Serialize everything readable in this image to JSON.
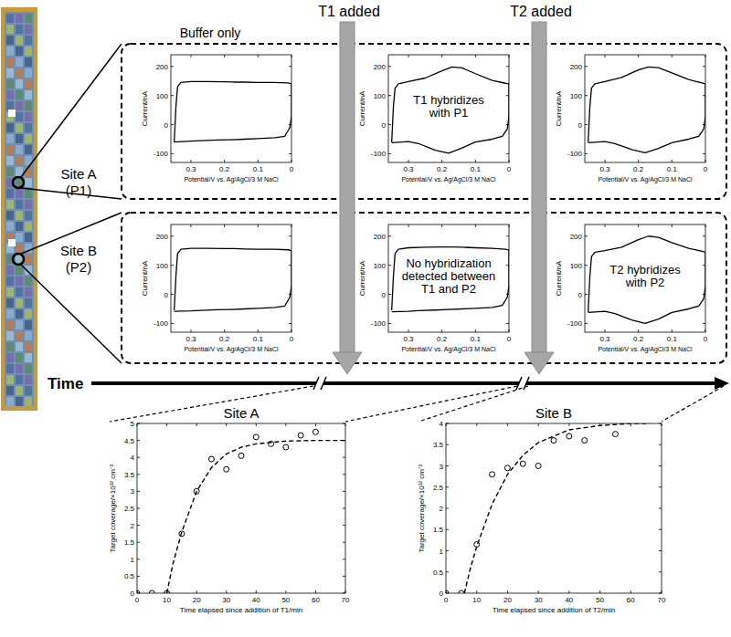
{
  "labels": {
    "buffer_only": "Buffer only",
    "arrows": [
      "T1 added",
      "T2 added"
    ],
    "sites": [
      {
        "name": "Site A",
        "probe": "(P1)"
      },
      {
        "name": "Site B",
        "probe": "(P2)"
      }
    ],
    "time_axis": "Time"
  },
  "chart_data": [
    {
      "type": "line",
      "x_label": "Potential/V vs. Ag/AgCl/3 M NaCl",
      "y_label": "Current/nA",
      "xlim": [
        0.36,
        0
      ],
      "ylim": [
        -130,
        240
      ],
      "xticks": [
        0.3,
        0.2,
        0.1,
        0
      ],
      "yticks": [
        -100,
        0,
        100,
        200
      ],
      "series": [
        {
          "color": "#000000",
          "x": [
            0.35,
            0.345,
            0.34,
            0.33,
            0.3,
            0.25,
            0.2,
            0.17,
            0.14,
            0.1,
            0.05,
            0.01,
            0,
            0,
            0.005,
            0.02,
            0.05,
            0.1,
            0.14,
            0.18,
            0.22,
            0.27,
            0.3,
            0.35
          ],
          "values": [
            -60,
            60,
            130,
            145,
            148,
            148,
            147,
            146,
            146,
            145,
            145,
            143,
            140,
            30,
            -10,
            -40,
            -45,
            -48,
            -50,
            -52,
            -53,
            -55,
            -57,
            -60
          ]
        }
      ]
    },
    {
      "type": "line",
      "x_label": "Potential/V vs. Ag/AgCl/3 M NaCl",
      "y_label": "Current/nA",
      "xlim": [
        0.36,
        0
      ],
      "ylim": [
        -130,
        240
      ],
      "xticks": [
        0.3,
        0.2,
        0.1,
        0
      ],
      "yticks": [
        -100,
        0,
        100,
        200
      ],
      "annotation": [
        "T1 hybridizes",
        "with P1"
      ],
      "series": [
        {
          "color": "#000000",
          "x": [
            0.35,
            0.345,
            0.34,
            0.33,
            0.3,
            0.25,
            0.2,
            0.17,
            0.14,
            0.1,
            0.05,
            0.01,
            0,
            0,
            0.005,
            0.02,
            0.05,
            0.1,
            0.14,
            0.18,
            0.22,
            0.27,
            0.3,
            0.35
          ],
          "values": [
            -60,
            60,
            125,
            140,
            148,
            160,
            185,
            198,
            195,
            175,
            152,
            142,
            140,
            30,
            -15,
            -40,
            -50,
            -60,
            -80,
            -98,
            -88,
            -65,
            -58,
            -62
          ]
        }
      ]
    },
    {
      "type": "line",
      "x_label": "Potential/V vs. Ag/AgCl/3 M NaCl",
      "y_label": "Current/nA",
      "xlim": [
        0.36,
        0
      ],
      "ylim": [
        -130,
        240
      ],
      "xticks": [
        0.3,
        0.2,
        0.1,
        0
      ],
      "yticks": [
        -100,
        0,
        100,
        200
      ],
      "series": [
        {
          "color": "#000000",
          "x": [
            0.35,
            0.345,
            0.34,
            0.33,
            0.3,
            0.25,
            0.2,
            0.17,
            0.14,
            0.1,
            0.05,
            0.01,
            0,
            0,
            0.005,
            0.02,
            0.05,
            0.1,
            0.14,
            0.18,
            0.22,
            0.27,
            0.3,
            0.35
          ],
          "values": [
            -60,
            60,
            125,
            140,
            148,
            162,
            188,
            198,
            196,
            178,
            155,
            143,
            140,
            30,
            -15,
            -40,
            -50,
            -62,
            -82,
            -97,
            -86,
            -65,
            -58,
            -62
          ]
        }
      ]
    },
    {
      "type": "line",
      "x_label": "Potential/V vs. Ag/AgCl/3 M NaCl",
      "y_label": "Current/nA",
      "xlim": [
        0.36,
        0
      ],
      "ylim": [
        -130,
        240
      ],
      "xticks": [
        0.3,
        0.2,
        0.1,
        0
      ],
      "yticks": [
        -100,
        0,
        100,
        200
      ],
      "series": [
        {
          "color": "#000000",
          "x": [
            0.35,
            0.345,
            0.34,
            0.33,
            0.3,
            0.25,
            0.2,
            0.17,
            0.14,
            0.1,
            0.05,
            0.01,
            0,
            0,
            0.005,
            0.02,
            0.05,
            0.1,
            0.14,
            0.18,
            0.22,
            0.27,
            0.3,
            0.35
          ],
          "values": [
            -55,
            60,
            140,
            155,
            158,
            158,
            157,
            157,
            156,
            155,
            155,
            153,
            150,
            30,
            -10,
            -40,
            -45,
            -48,
            -50,
            -52,
            -53,
            -55,
            -57,
            -58
          ]
        }
      ]
    },
    {
      "type": "line",
      "x_label": "Potential/V vs. Ag/AgCl/3 M NaCl",
      "y_label": "Current/nA",
      "xlim": [
        0.36,
        0
      ],
      "ylim": [
        -130,
        240
      ],
      "xticks": [
        0.3,
        0.2,
        0.1,
        0
      ],
      "yticks": [
        -100,
        0,
        100,
        200
      ],
      "annotation": [
        "No hybridization",
        "detected between",
        "T1 and P2"
      ],
      "series": [
        {
          "color": "#000000",
          "x": [
            0.35,
            0.345,
            0.34,
            0.33,
            0.3,
            0.25,
            0.2,
            0.17,
            0.14,
            0.1,
            0.05,
            0.01,
            0,
            0,
            0.005,
            0.02,
            0.05,
            0.1,
            0.14,
            0.18,
            0.22,
            0.27,
            0.3,
            0.35
          ],
          "values": [
            -55,
            60,
            140,
            155,
            160,
            162,
            163,
            163,
            162,
            160,
            158,
            155,
            152,
            30,
            -10,
            -38,
            -45,
            -48,
            -50,
            -52,
            -54,
            -56,
            -58,
            -60
          ]
        }
      ]
    },
    {
      "type": "line",
      "x_label": "Potential/V vs. Ag/AgCl/3 M NaCl",
      "y_label": "Current/nA",
      "xlim": [
        0.36,
        0
      ],
      "ylim": [
        -130,
        240
      ],
      "xticks": [
        0.3,
        0.2,
        0.1,
        0
      ],
      "yticks": [
        -100,
        0,
        100,
        200
      ],
      "annotation": [
        "T2 hybridizes",
        "with P2"
      ],
      "series": [
        {
          "color": "#000000",
          "x": [
            0.35,
            0.345,
            0.34,
            0.33,
            0.3,
            0.25,
            0.2,
            0.17,
            0.14,
            0.1,
            0.05,
            0.01,
            0,
            0,
            0.005,
            0.02,
            0.05,
            0.1,
            0.14,
            0.18,
            0.22,
            0.27,
            0.3,
            0.35
          ],
          "values": [
            -60,
            60,
            130,
            145,
            150,
            162,
            188,
            200,
            196,
            178,
            158,
            148,
            145,
            30,
            -15,
            -40,
            -50,
            -62,
            -85,
            -100,
            -88,
            -66,
            -58,
            -62
          ]
        }
      ]
    },
    {
      "type": "scatter",
      "title": "Site A",
      "x_label": "Time elapsed since addition of T1/min",
      "y_label": "Target coverage/×10¹² cm⁻²",
      "xlim": [
        0,
        70
      ],
      "ylim": [
        0,
        5
      ],
      "xticks": [
        0,
        10,
        20,
        30,
        40,
        50,
        60,
        70
      ],
      "yticks": [
        0,
        0.5,
        1,
        1.5,
        2,
        2.5,
        3,
        3.5,
        4,
        4.5,
        5
      ],
      "series": [
        {
          "type": "scatter",
          "marker": "circle",
          "color": "#000000",
          "x": [
            0,
            5,
            10,
            15,
            20,
            25,
            30,
            35,
            40,
            45,
            50,
            55,
            60
          ],
          "values": [
            0,
            0,
            0,
            1.75,
            3.0,
            3.95,
            3.65,
            4.05,
            4.6,
            4.4,
            4.3,
            4.65,
            4.75
          ]
        },
        {
          "type": "line",
          "line_style": "dashed",
          "color": "#000000",
          "x": [
            10,
            12,
            15,
            20,
            25,
            30,
            35,
            40,
            50,
            60,
            70
          ],
          "values": [
            0,
            0.85,
            1.8,
            3.0,
            3.7,
            4.1,
            4.3,
            4.4,
            4.48,
            4.5,
            4.5
          ]
        }
      ]
    },
    {
      "type": "scatter",
      "title": "Site B",
      "x_label": "Time elapsed since addition of T2/min",
      "y_label": "Target coverage/×10¹² cm⁻²",
      "xlim": [
        0,
        70
      ],
      "ylim": [
        0,
        4
      ],
      "xticks": [
        0,
        10,
        20,
        30,
        40,
        50,
        60,
        70
      ],
      "yticks": [
        0,
        0.5,
        1,
        1.5,
        2,
        2.5,
        3,
        3.5,
        4
      ],
      "series": [
        {
          "type": "scatter",
          "marker": "circle",
          "color": "#000000",
          "x": [
            0,
            5,
            10,
            15,
            20,
            25,
            30,
            35,
            40,
            45,
            55
          ],
          "values": [
            0,
            0,
            1.15,
            2.8,
            2.95,
            3.05,
            3.0,
            3.6,
            3.7,
            3.6,
            3.75
          ]
        },
        {
          "type": "line",
          "line_style": "dashed",
          "color": "#000000",
          "x": [
            6,
            8,
            10,
            15,
            20,
            25,
            30,
            40,
            50,
            60,
            66
          ],
          "values": [
            0,
            0.6,
            1.1,
            2.1,
            2.8,
            3.25,
            3.55,
            3.85,
            3.95,
            4.0,
            4.0
          ]
        }
      ]
    }
  ]
}
